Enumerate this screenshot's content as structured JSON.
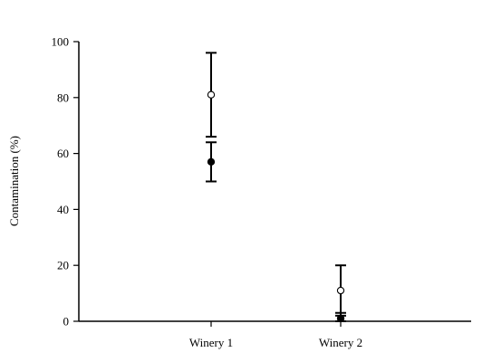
{
  "chart_data": {
    "type": "scatter",
    "title": "",
    "xlabel": "",
    "ylabel": "Contamination (%)",
    "categories": [
      "Winery 1",
      "Winery 2"
    ],
    "ylim": [
      0,
      100
    ],
    "yticks": [
      0,
      20,
      40,
      60,
      80,
      100
    ],
    "grid": false,
    "legend": "none",
    "series": [
      {
        "marker": "open-circle",
        "values": [
          81,
          11
        ],
        "error_high": [
          96,
          20
        ],
        "error_low": [
          66,
          2
        ]
      },
      {
        "marker": "filled-circle",
        "values": [
          57,
          1
        ],
        "error_high": [
          64,
          3
        ],
        "error_low": [
          50,
          0
        ]
      }
    ]
  },
  "colors": {
    "axis": "#000000",
    "open_marker_fill": "#ffffff",
    "filled_marker_fill": "#000000"
  }
}
